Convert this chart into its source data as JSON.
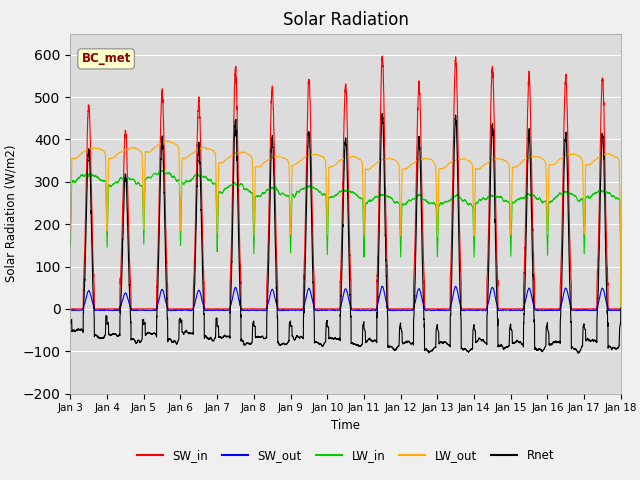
{
  "title": "Solar Radiation",
  "ylabel": "Solar Radiation (W/m2)",
  "xlabel": "Time",
  "ylim": [
    -200,
    650
  ],
  "yticks": [
    -200,
    -100,
    0,
    100,
    200,
    300,
    400,
    500,
    600
  ],
  "bg_color": "#dcdcdc",
  "fig_bg_color": "#f0f0f0",
  "colors": {
    "SW_in": "#ff0000",
    "SW_out": "#0000ff",
    "LW_in": "#00cc00",
    "LW_out": "#ffaa00",
    "Rnet": "#000000"
  },
  "linewidth": 0.8,
  "n_days": 15,
  "pts_per_day": 288,
  "xtick_labels": [
    "Jan 3",
    "Jan 4",
    "Jan 5",
    "Jan 6",
    "Jan 7",
    "Jan 8",
    "Jan 9",
    "Jan 10",
    "Jan 11",
    "Jan 12",
    "Jan 13",
    "Jan 14",
    "Jan 15",
    "Jan 16",
    "Jan 17",
    "Jan 18"
  ],
  "legend_labels": [
    "SW_in",
    "SW_out",
    "LW_in",
    "LW_out",
    "Rnet"
  ],
  "legend_colors": [
    "#ff0000",
    "#0000ff",
    "#00cc00",
    "#ffaa00",
    "#000000"
  ],
  "annotation_text": "BC_met",
  "sw_in_peaks": [
    480,
    420,
    510,
    490,
    560,
    520,
    540,
    530,
    595,
    530,
    590,
    570,
    545,
    550,
    545
  ],
  "lw_out_base": [
    355,
    355,
    370,
    355,
    345,
    335,
    340,
    335,
    330,
    330,
    330,
    330,
    335,
    340,
    340
  ],
  "lw_in_base": [
    310,
    300,
    315,
    305,
    285,
    275,
    278,
    270,
    260,
    255,
    255,
    258,
    260,
    265,
    270
  ]
}
